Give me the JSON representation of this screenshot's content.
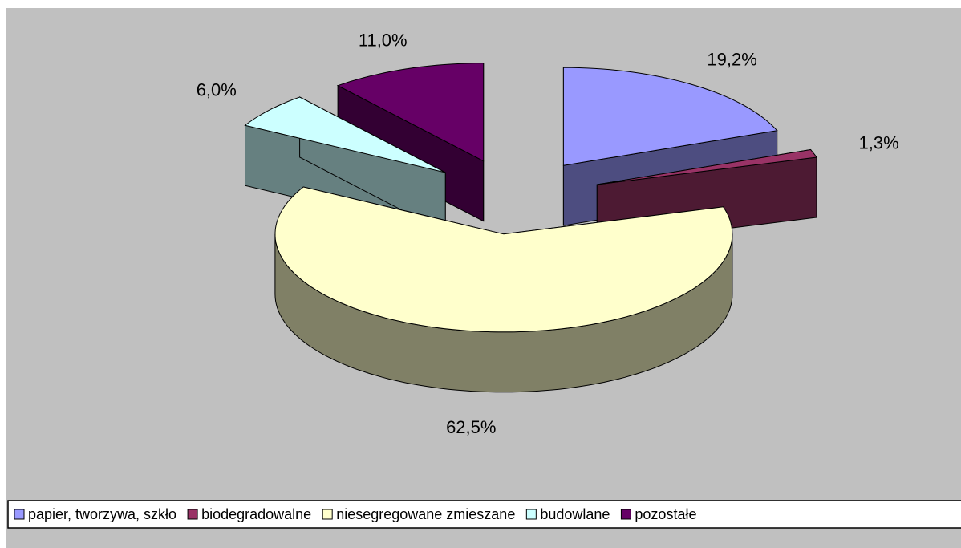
{
  "chart_data": {
    "type": "pie3d",
    "categories": [
      "papier, tworzywa, szkło",
      "biodegradowalne",
      "niesegregowane zmieszane",
      "budowlane",
      "pozostałe"
    ],
    "values": [
      19.2,
      1.3,
      62.5,
      6.0,
      11.0
    ],
    "value_labels": [
      "19,2%",
      "1,3%",
      "62,5%",
      "6,0%",
      "11,0%"
    ],
    "colors": [
      "#9999ff",
      "#993366",
      "#ffffcc",
      "#ccffff",
      "#660066"
    ],
    "legend": "bottom"
  }
}
